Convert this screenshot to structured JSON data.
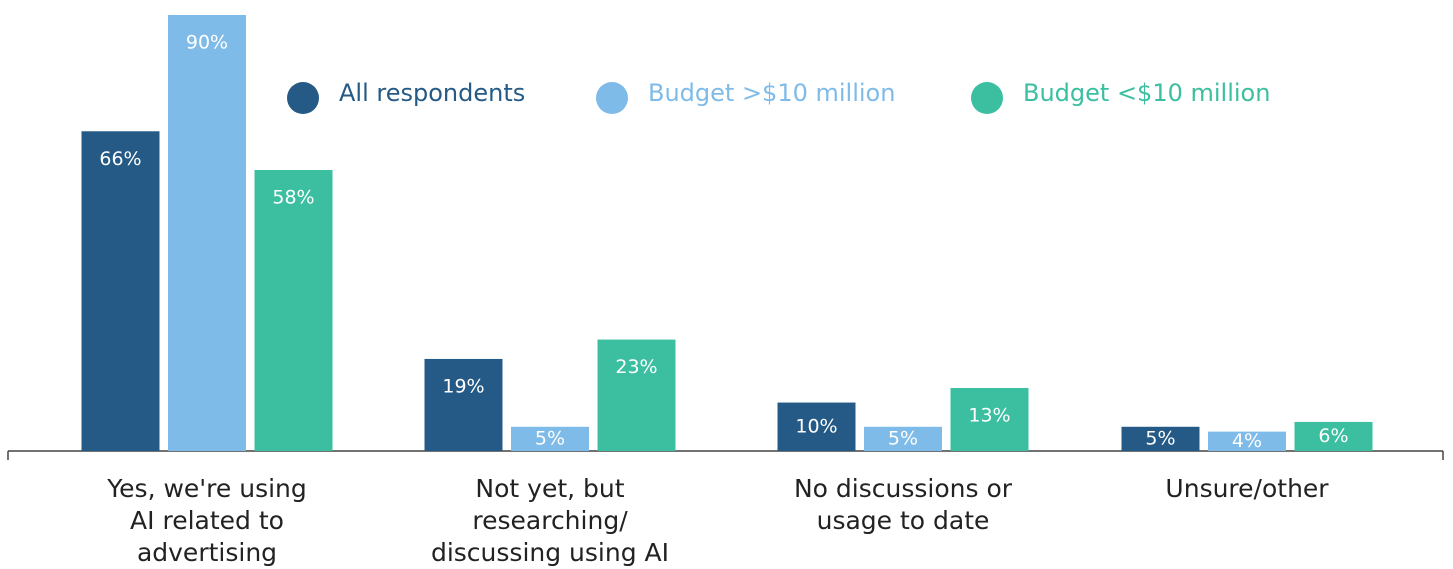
{
  "chart_data": {
    "type": "bar",
    "categories": [
      [
        "Yes, we're using",
        "AI related to",
        "advertising"
      ],
      [
        "Not yet, but",
        "researching/",
        "discussing using AI"
      ],
      [
        "No discussions or",
        "usage to date"
      ],
      [
        "Unsure/other"
      ]
    ],
    "series": [
      {
        "name": "All respondents",
        "color": "#245a85",
        "values": [
          66,
          19,
          10,
          5
        ],
        "value_labels": [
          "66%",
          "19%",
          "10%",
          "5%"
        ]
      },
      {
        "name": "Budget >$10 million",
        "color": "#7fbbe8",
        "values": [
          90,
          5,
          5,
          4
        ],
        "value_labels": [
          "90%",
          "5%",
          "5%",
          "4%"
        ]
      },
      {
        "name": "Budget <$10 million",
        "color": "#3bbfa0",
        "values": [
          58,
          23,
          13,
          6
        ],
        "value_labels": [
          "58%",
          "23%",
          "13%",
          "6%"
        ]
      }
    ]
  }
}
